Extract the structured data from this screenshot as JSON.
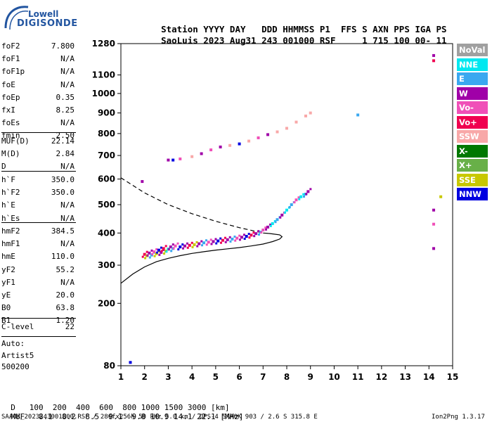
{
  "brand": {
    "line1": "Lowell",
    "line2": "DIGISONDE"
  },
  "header": {
    "labels": [
      "Station",
      "YYYY",
      "DAY",
      "DDD",
      "HHMMSS",
      "P1",
      "FFS",
      "S",
      "AXN",
      "PPS",
      "IGA",
      "PS"
    ],
    "values": [
      "SaoLuis",
      "2023",
      "Aug31",
      "243",
      "001000",
      "RSF",
      "",
      "1",
      "715",
      "100",
      "00-",
      "11"
    ]
  },
  "parameters_group1": [
    {
      "key": "foF2",
      "value": "7.800"
    },
    {
      "key": "foF1",
      "value": "N/A"
    },
    {
      "key": "foF1p",
      "value": "N/A"
    },
    {
      "key": "foE",
      "value": "N/A"
    },
    {
      "key": "foEp",
      "value": "0.35"
    },
    {
      "key": "fxI",
      "value": "8.25"
    },
    {
      "key": "foEs",
      "value": "N/A"
    },
    {
      "key": "fmin",
      "value": "2.50"
    }
  ],
  "parameters_group2": [
    {
      "key": "MUF(D)",
      "value": "22.14"
    },
    {
      "key": "M(D)",
      "value": "2.84"
    },
    {
      "key": "D",
      "value": "N/A"
    }
  ],
  "parameters_group3": [
    {
      "key": "h`F",
      "value": "350.0"
    },
    {
      "key": "h`F2",
      "value": "350.0"
    },
    {
      "key": "h`E",
      "value": "N/A"
    },
    {
      "key": "h`Es",
      "value": "N/A"
    }
  ],
  "parameters_group4": [
    {
      "key": "hmF2",
      "value": "384.5"
    },
    {
      "key": "hmF1",
      "value": "N/A"
    },
    {
      "key": "hmE",
      "value": "110.0"
    },
    {
      "key": "yF2",
      "value": "55.2"
    },
    {
      "key": "yF1",
      "value": "N/A"
    },
    {
      "key": "yE",
      "value": "20.0"
    },
    {
      "key": "B0",
      "value": "63.8"
    },
    {
      "key": "B1",
      "value": "1.20"
    }
  ],
  "clevel": {
    "key": "C-level",
    "value": "22"
  },
  "autoscaling": [
    "Auto:",
    "Artist5",
    "500200"
  ],
  "legend": [
    {
      "label": "NoVal",
      "color": "#a0a0a0"
    },
    {
      "label": "NNE",
      "color": "#00e8f0"
    },
    {
      "label": "E",
      "color": "#3aa8f0"
    },
    {
      "label": "W",
      "color": "#a000a8"
    },
    {
      "label": "Vo-",
      "color": "#f050b8"
    },
    {
      "label": "Vo+",
      "color": "#f00050"
    },
    {
      "label": "SSW",
      "color": "#f8a8a8"
    },
    {
      "label": "X-",
      "color": "#007800"
    },
    {
      "label": "X+",
      "color": "#68b048"
    },
    {
      "label": "SSE",
      "color": "#c8c800"
    },
    {
      "label": "NNW",
      "color": "#0000e0"
    }
  ],
  "footer": {
    "d_label": "D",
    "d_values": [
      "100",
      "200",
      "400",
      "600",
      "800",
      "1000",
      "1500",
      "3000"
    ],
    "d_unit": "[km]",
    "muf_label": "MUF",
    "muf_values": [
      "8.1",
      "8.2",
      "8.5",
      "9.1",
      "9.8",
      "10.9",
      "14.1",
      "22.1"
    ],
    "muf_unit": "[MHz]",
    "file_info": "SAA0K_2023243001000.RSF / 280fx256h 50 kHz 5.0 km / DPS-4 SAA0K 903 / 2.6 S 315.8 E",
    "version": "Ion2Png 1.3.17"
  },
  "chart_data": {
    "type": "scatter",
    "xlabel": "",
    "ylabel": "",
    "xlim": [
      1,
      15
    ],
    "ylim": [
      80,
      1280
    ],
    "yscale": "sqrt",
    "x_ticks": [
      1,
      2,
      3,
      4,
      5,
      6,
      7,
      8,
      9,
      10,
      11,
      12,
      13,
      14,
      15
    ],
    "y_ticks": [
      80,
      200,
      300,
      400,
      500,
      600,
      700,
      800,
      900,
      1000,
      1100,
      1280
    ],
    "grid": false,
    "legend_position": "right",
    "profile_solid": [
      [
        1.0,
        250
      ],
      [
        1.5,
        275
      ],
      [
        2.0,
        295
      ],
      [
        2.5,
        310
      ],
      [
        3.0,
        320
      ],
      [
        3.5,
        328
      ],
      [
        4.0,
        335
      ],
      [
        4.5,
        340
      ],
      [
        5.0,
        345
      ],
      [
        5.5,
        349
      ],
      [
        6.0,
        353
      ],
      [
        6.5,
        358
      ],
      [
        7.0,
        364
      ],
      [
        7.4,
        372
      ],
      [
        7.7,
        380
      ],
      [
        7.8,
        388
      ],
      [
        7.7,
        394
      ],
      [
        7.3,
        398
      ],
      [
        7.0,
        400
      ]
    ],
    "profile_dashed": [
      [
        1.0,
        605
      ],
      [
        2.0,
        545
      ],
      [
        3.0,
        500
      ],
      [
        4.0,
        467
      ],
      [
        5.0,
        440
      ],
      [
        6.0,
        418
      ],
      [
        7.0,
        400
      ]
    ],
    "f_trace": [
      [
        2.0,
        332,
        "#f00050"
      ],
      [
        2.1,
        328,
        "#c8c800"
      ],
      [
        2.2,
        336,
        "#a000a8"
      ],
      [
        2.3,
        330,
        "#3aa8f0"
      ],
      [
        2.4,
        340,
        "#f050b8"
      ],
      [
        2.5,
        334,
        "#c8c800"
      ],
      [
        2.6,
        345,
        "#0000e0"
      ],
      [
        2.7,
        338,
        "#a000a8"
      ],
      [
        2.8,
        350,
        "#f00050"
      ],
      [
        2.9,
        342,
        "#c8c800"
      ],
      [
        3.0,
        348,
        "#00e8f0"
      ],
      [
        3.1,
        355,
        "#a000a8"
      ],
      [
        3.2,
        350,
        "#3aa8f0"
      ],
      [
        3.3,
        358,
        "#f050b8"
      ],
      [
        3.5,
        355,
        "#0000e0"
      ],
      [
        3.7,
        358,
        "#a000a8"
      ],
      [
        3.9,
        360,
        "#f00050"
      ],
      [
        4.1,
        362,
        "#c8c800"
      ],
      [
        4.3,
        365,
        "#a000a8"
      ],
      [
        4.5,
        368,
        "#3aa8f0"
      ],
      [
        4.7,
        370,
        "#f050b8"
      ],
      [
        4.9,
        372,
        "#a000a8"
      ],
      [
        5.1,
        374,
        "#0000e0"
      ],
      [
        5.3,
        376,
        "#f00050"
      ],
      [
        5.5,
        378,
        "#a000a8"
      ],
      [
        5.7,
        380,
        "#3aa8f0"
      ],
      [
        5.9,
        383,
        "#f050b8"
      ],
      [
        6.1,
        386,
        "#a000a8"
      ],
      [
        6.3,
        389,
        "#0000e0"
      ],
      [
        6.5,
        393,
        "#f00050"
      ],
      [
        6.7,
        398,
        "#a000a8"
      ],
      [
        6.9,
        403,
        "#3aa8f0"
      ],
      [
        7.0,
        410,
        "#f050b8"
      ],
      [
        7.2,
        420,
        "#a000a8"
      ],
      [
        7.4,
        432,
        "#00e8f0"
      ],
      [
        7.6,
        446,
        "#3aa8f0"
      ],
      [
        7.8,
        462,
        "#a000a8"
      ],
      [
        8.0,
        480,
        "#00e8f0"
      ],
      [
        8.2,
        500,
        "#3aa8f0"
      ],
      [
        8.4,
        518,
        "#f050b8"
      ],
      [
        8.6,
        530,
        "#00e8f0"
      ],
      [
        8.8,
        540,
        "#3aa8f0"
      ],
      [
        8.9,
        550,
        "#a000a8"
      ]
    ],
    "second_hop": [
      [
        3.0,
        680,
        "#a000a8"
      ],
      [
        3.2,
        680,
        "#0000e0"
      ],
      [
        3.5,
        685,
        "#f050b8"
      ],
      [
        4.0,
        695,
        "#f8a8a8"
      ],
      [
        4.4,
        708,
        "#a000a8"
      ],
      [
        4.8,
        725,
        "#f050b8"
      ],
      [
        5.2,
        738,
        "#a000a8"
      ],
      [
        5.6,
        745,
        "#f8a8a8"
      ],
      [
        6.0,
        752,
        "#0000e0"
      ],
      [
        6.4,
        765,
        "#f8a8a8"
      ],
      [
        6.8,
        780,
        "#f050b8"
      ],
      [
        7.2,
        795,
        "#a000a8"
      ],
      [
        7.6,
        808,
        "#f8a8a8"
      ],
      [
        8.0,
        825,
        "#f8a8a8"
      ],
      [
        8.4,
        855,
        "#f8a8a8"
      ],
      [
        8.8,
        885,
        "#f8a8a8"
      ],
      [
        9.0,
        900,
        "#f8a8a8"
      ]
    ],
    "isolated_points": [
      [
        11.0,
        890,
        "#3aa8f0"
      ],
      [
        14.2,
        1210,
        "#a000a8"
      ],
      [
        14.2,
        1180,
        "#f00050"
      ],
      [
        14.2,
        480,
        "#a000a8"
      ],
      [
        14.2,
        430,
        "#f050b8"
      ],
      [
        14.2,
        350,
        "#a000a8"
      ],
      [
        14.5,
        530,
        "#c8c800"
      ],
      [
        1.4,
        85,
        "#0000e0"
      ],
      [
        1.9,
        590,
        "#a000a8"
      ]
    ]
  }
}
